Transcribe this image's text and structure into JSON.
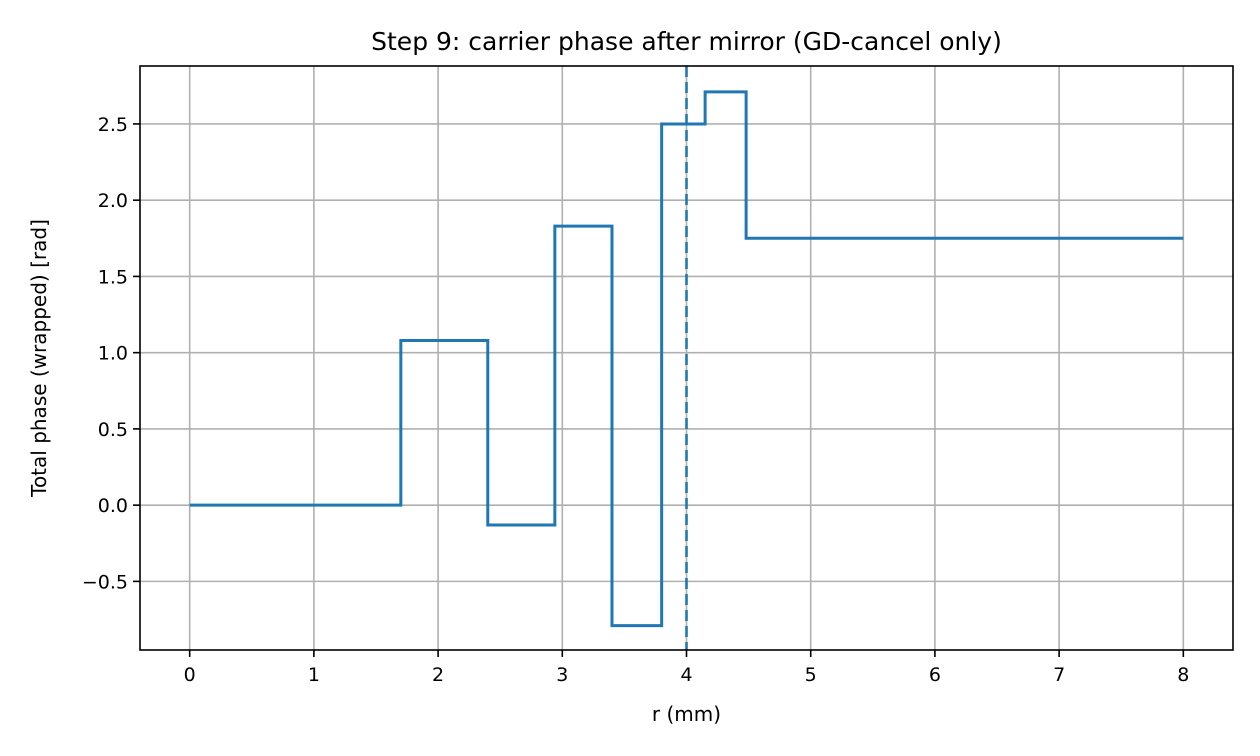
{
  "chart_data": {
    "type": "line",
    "title": "Step 9: carrier phase after mirror (GD-cancel only)",
    "xlabel": "r (mm)",
    "ylabel": "Total phase (wrapped) [rad]",
    "xlim": [
      -0.4,
      8.4
    ],
    "ylim": [
      -0.95,
      2.88
    ],
    "xticks": [
      0,
      1,
      2,
      3,
      4,
      5,
      6,
      7,
      8
    ],
    "xtick_labels": [
      "0",
      "1",
      "2",
      "3",
      "4",
      "5",
      "6",
      "7",
      "8"
    ],
    "yticks": [
      -0.5,
      0.0,
      0.5,
      1.0,
      1.5,
      2.0,
      2.5
    ],
    "ytick_labels": [
      "−0.5",
      "0.0",
      "0.5",
      "1.0",
      "1.5",
      "2.0",
      "2.5"
    ],
    "grid": true,
    "series": [
      {
        "step": "pre",
        "color": "#1f77b4",
        "x": [
          0,
          1.7,
          1.7,
          2.4,
          2.4,
          2.94,
          2.94,
          3.4,
          3.4,
          3.8,
          3.8,
          4.15,
          4.15,
          4.48,
          4.48,
          8.0
        ],
        "y": [
          0,
          0,
          1.08,
          1.08,
          -0.13,
          -0.13,
          1.83,
          1.83,
          -0.79,
          -0.79,
          2.5,
          2.5,
          2.71,
          2.71,
          1.75,
          1.75
        ]
      }
    ],
    "annotations": [
      {
        "type": "vline",
        "x": 4.0,
        "style": "dashed",
        "color": "#1f77b4"
      }
    ]
  }
}
